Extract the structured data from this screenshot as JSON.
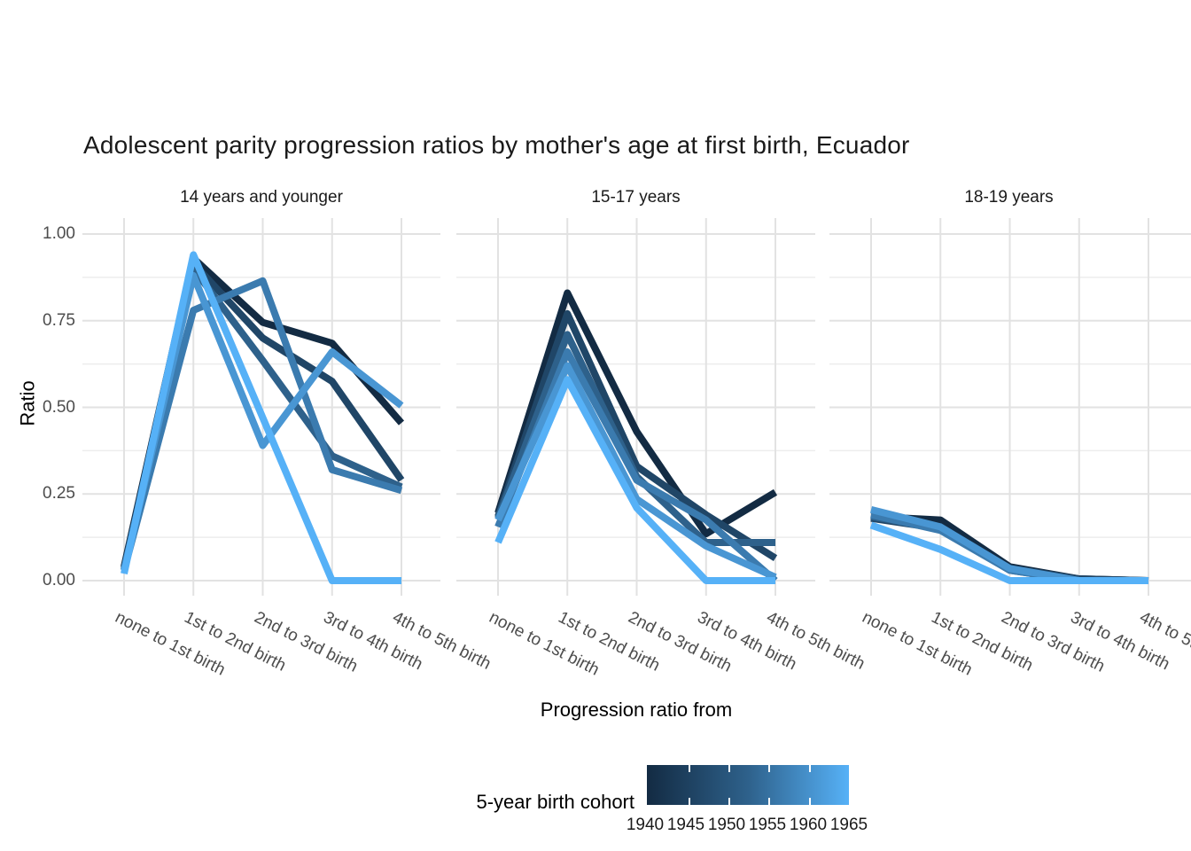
{
  "title": "Adolescent parity progression ratios by mother's age at first birth,  Ecuador",
  "axes": {
    "y_title": "Ratio",
    "x_title": "Progression ratio from",
    "y_tick_labels": [
      "1.00",
      "0.75",
      "0.50",
      "0.25",
      "0.00"
    ],
    "y_tick_values": [
      1.0,
      0.75,
      0.5,
      0.25,
      0.0
    ],
    "y_minor_values": [
      0.875,
      0.625,
      0.375,
      0.125
    ]
  },
  "legend": {
    "title": "5-year birth cohort",
    "gradient_low": "#132B43",
    "gradient_mid": "#2E618B",
    "gradient_high": "#56B1F7",
    "labels": [
      "1940",
      "1945",
      "1950",
      "1955",
      "1960",
      "1965"
    ]
  },
  "colors": {
    "grid_major": "#E2E2E2",
    "grid_minor": "#EDEDED",
    "tick_text": "#4d4d4d",
    "title_text": "#1a1a1a"
  },
  "chart_data": {
    "type": "line",
    "title": "Adolescent parity progression ratios by mother's age at first birth,  Ecuador",
    "xlabel": "Progression ratio from",
    "ylabel": "Ratio",
    "ylim": [
      0,
      1
    ],
    "grid": "major+minor",
    "legend_position": "bottom",
    "legend_title": "5-year birth cohort",
    "categories": [
      "none to 1st birth",
      "1st to 2nd birth",
      "2nd to 3rd birth",
      "3rd to 4th birth",
      "4th to 5th birth"
    ],
    "facets": [
      {
        "label": "14 years and younger",
        "series": [
          {
            "name": "1940",
            "color": "#132B43",
            "values": [
              0.04,
              0.93,
              0.745,
              0.685,
              0.455
            ]
          },
          {
            "name": "1945",
            "color": "#204667",
            "values": [
              0.035,
              0.915,
              0.7,
              0.575,
              0.29
            ]
          },
          {
            "name": "1950",
            "color": "#2E618B",
            "values": [
              0.03,
              0.9,
              0.635,
              0.36,
              0.27
            ]
          },
          {
            "name": "1955",
            "color": "#3B7BAF",
            "values": [
              0.03,
              0.78,
              0.865,
              0.32,
              0.26
            ]
          },
          {
            "name": "1960",
            "color": "#4996D3",
            "values": [
              0.03,
              0.88,
              0.39,
              0.66,
              0.505
            ]
          },
          {
            "name": "1965",
            "color": "#56B1F7",
            "values": [
              0.02,
              0.94,
              0.47,
              0.0,
              0.0
            ]
          }
        ]
      },
      {
        "label": "15-17 years",
        "series": [
          {
            "name": "1940",
            "color": "#132B43",
            "values": [
              0.195,
              0.83,
              0.43,
              0.135,
              0.255
            ]
          },
          {
            "name": "1945",
            "color": "#204667",
            "values": [
              0.185,
              0.77,
              0.33,
              0.19,
              0.065
            ]
          },
          {
            "name": "1950",
            "color": "#2E618B",
            "values": [
              0.18,
              0.71,
              0.3,
              0.11,
              0.11
            ]
          },
          {
            "name": "1955",
            "color": "#3B7BAF",
            "values": [
              0.155,
              0.66,
              0.29,
              0.175,
              0.0
            ]
          },
          {
            "name": "1960",
            "color": "#4996D3",
            "values": [
              0.175,
              0.62,
              0.235,
              0.1,
              0.01
            ]
          },
          {
            "name": "1965",
            "color": "#56B1F7",
            "values": [
              0.11,
              0.58,
              0.21,
              0.0,
              0.0
            ]
          }
        ]
      },
      {
        "label": "18-19 years",
        "series": [
          {
            "name": "1940",
            "color": "#132B43",
            "values": [
              0.185,
              0.175,
              0.04,
              0.005,
              0.0
            ]
          },
          {
            "name": "1945",
            "color": "#204667",
            "values": [
              0.18,
              0.15,
              0.035,
              0.005,
              0.0
            ]
          },
          {
            "name": "1950",
            "color": "#2E618B",
            "values": [
              0.185,
              0.15,
              0.03,
              0.0,
              0.0
            ]
          },
          {
            "name": "1955",
            "color": "#3B7BAF",
            "values": [
              0.19,
              0.145,
              0.03,
              0.0,
              0.0
            ]
          },
          {
            "name": "1960",
            "color": "#4996D3",
            "values": [
              0.205,
              0.155,
              0.035,
              0.0,
              0.0
            ]
          },
          {
            "name": "1965",
            "color": "#56B1F7",
            "values": [
              0.16,
              0.09,
              0.0,
              0.0,
              0.0
            ]
          }
        ]
      }
    ]
  }
}
